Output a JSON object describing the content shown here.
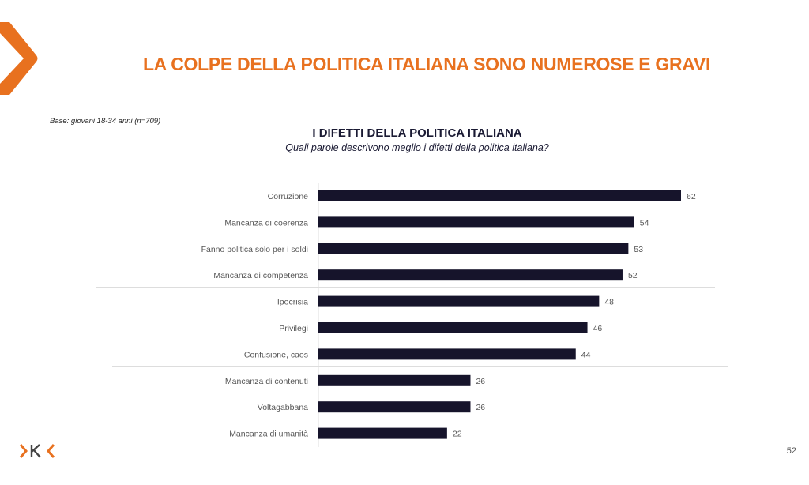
{
  "header": {
    "title": "LA COLPE DELLA POLITICA ITALIANA SONO NUMEROSE E GRAVI"
  },
  "base_note": "Base: giovani 18-34 anni (n=709)",
  "page_number": "52",
  "colors": {
    "accent": "#e8711f",
    "bar": "#16142b"
  },
  "chart_data": {
    "type": "bar",
    "orientation": "horizontal",
    "title": "I DIFETTI DELLA POLITICA ITALIANA",
    "subtitle": "Quali parole descrivono meglio i difetti della politica italiana?",
    "categories": [
      "Corruzione",
      "Mancanza di coerenza",
      "Fanno politica solo per i soldi",
      "Mancanza di competenza",
      "Ipocrisia",
      "Privilegi",
      "Confusione, caos",
      "Mancanza di contenuti",
      "Voltagabbana",
      "Mancanza di umanità"
    ],
    "values": [
      62,
      54,
      53,
      52,
      48,
      46,
      44,
      26,
      26,
      22
    ],
    "xlabel": "",
    "ylabel": "",
    "xlim": [
      0,
      62
    ],
    "grid": false,
    "legend": "none"
  }
}
